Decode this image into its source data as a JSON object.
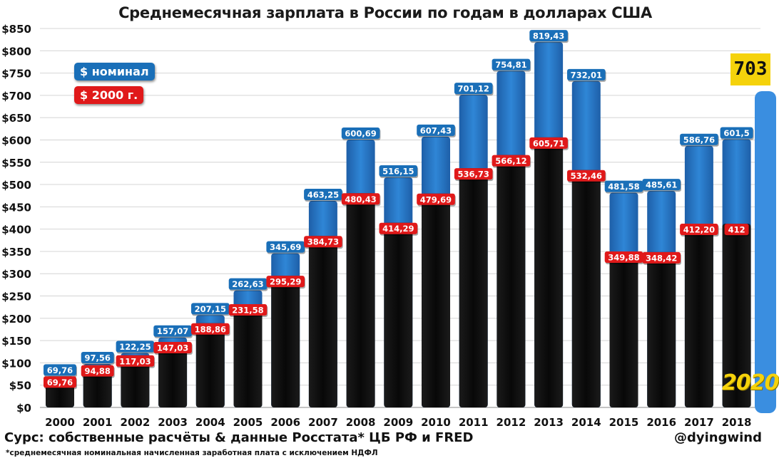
{
  "chart_data": {
    "type": "bar",
    "title": "Среднемесячная зарплата в России по годам в долларах США",
    "categories": [
      "2000",
      "2001",
      "2002",
      "2003",
      "2004",
      "2005",
      "2006",
      "2007",
      "2008",
      "2009",
      "2010",
      "2011",
      "2012",
      "2013",
      "2014",
      "2015",
      "2016",
      "2017",
      "2018"
    ],
    "series": [
      {
        "name": "$ номинал",
        "color": "#1a6fb8",
        "values": [
          69.76,
          97.56,
          122.25,
          157.07,
          207.15,
          262.63,
          345.69,
          463.25,
          600.69,
          516.15,
          607.43,
          701.12,
          754.81,
          819.43,
          732.01,
          481.58,
          485.61,
          586.76,
          601.5
        ],
        "labels": [
          "69,76",
          "97,56",
          "122,25",
          "157,07",
          "207,15",
          "262,63",
          "345,69",
          "463,25",
          "600,69",
          "516,15",
          "607,43",
          "701,12",
          "754,81",
          "819,43",
          "732,01",
          "481,58",
          "485,61",
          "586,76",
          "601,5"
        ]
      },
      {
        "name": "$ 2000 г.",
        "color": "#e0191a",
        "values": [
          69.76,
          94.88,
          117.03,
          147.03,
          188.86,
          231.58,
          295.29,
          384.73,
          480.43,
          414.29,
          479.69,
          536.73,
          566.12,
          605.71,
          532.46,
          349.88,
          348.42,
          412.2,
          412
        ],
        "labels": [
          "69,76",
          "94,88",
          "117,03",
          "147,03",
          "188,86",
          "231,58",
          "295,29",
          "384,73",
          "480,43",
          "414,29",
          "479,69",
          "536,73",
          "566,12",
          "605,71",
          "532,46",
          "349,88",
          "348,42",
          "412,20",
          "412"
        ]
      }
    ],
    "ylim": [
      0,
      850
    ],
    "yticks": [
      0,
      50,
      100,
      150,
      200,
      250,
      300,
      350,
      400,
      450,
      500,
      550,
      600,
      650,
      700,
      750,
      800,
      850
    ],
    "ytick_labels": [
      "$0",
      "$50",
      "$100",
      "$150",
      "$200",
      "$250",
      "$300",
      "$350",
      "$400",
      "$450",
      "$500",
      "$550",
      "$600",
      "$650",
      "$700",
      "$750",
      "$800",
      "$850"
    ],
    "grid": true,
    "legend_position": "top-left",
    "overlay_bar_color": "#111111"
  },
  "legend": {
    "nominal_label": "$ номинал",
    "real_label": "$ 2000 г."
  },
  "overlay": {
    "badge_value": "703",
    "badge_color": "#f5d20b",
    "year_label": "2020",
    "panel_color": "#3a8ee0"
  },
  "footer": {
    "source": "Сурс: собственные расчёты & данные Росстата* ЦБ РФ и FRED",
    "author": "@dyingwind",
    "footnote": "*среднемесячная номинальная начисленная заработная плата с исключением НДФЛ"
  }
}
